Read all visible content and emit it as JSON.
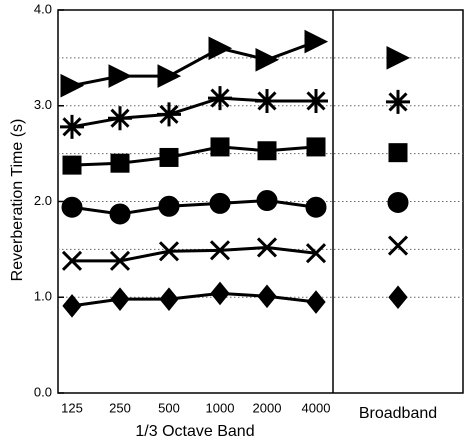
{
  "chart_data": {
    "type": "line",
    "y_label": "Reverberation Time (s)",
    "x_label": "1/3 Octave Band",
    "broadband_label": "Broadband",
    "categories": [
      "125",
      "250",
      "500",
      "1000",
      "2000",
      "4000"
    ],
    "ylim": [
      0,
      4
    ],
    "yticks": [
      {
        "value": 0,
        "label": "0.0"
      },
      {
        "value": 1,
        "label": "1.0"
      },
      {
        "value": 2,
        "label": "2.0"
      },
      {
        "value": 3,
        "label": "3.0"
      },
      {
        "value": 4,
        "label": "4.0"
      }
    ],
    "grid_values": [
      1,
      1.5,
      2,
      2.5,
      3,
      3.5
    ],
    "grid_style": "dotted",
    "series": [
      {
        "marker": "triangle",
        "color": "#000000",
        "values": [
          3.21,
          3.31,
          3.31,
          3.6,
          3.48,
          3.67
        ],
        "broadband": 3.5
      },
      {
        "marker": "asterisk",
        "color": "#000000",
        "values": [
          2.78,
          2.87,
          2.91,
          3.08,
          3.05,
          3.05
        ],
        "broadband": 3.04
      },
      {
        "marker": "square",
        "color": "#000000",
        "values": [
          2.38,
          2.4,
          2.46,
          2.57,
          2.53,
          2.57
        ],
        "broadband": 2.51
      },
      {
        "marker": "circle",
        "color": "#000000",
        "values": [
          1.94,
          1.87,
          1.95,
          1.98,
          2.01,
          1.94
        ],
        "broadband": 1.99
      },
      {
        "marker": "cross",
        "color": "#000000",
        "values": [
          1.38,
          1.38,
          1.48,
          1.49,
          1.52,
          1.46
        ],
        "broadband": 1.54
      },
      {
        "marker": "diamond",
        "color": "#000000",
        "values": [
          0.91,
          0.98,
          0.98,
          1.04,
          1.01,
          0.95
        ],
        "broadband": 1.0
      }
    ]
  }
}
